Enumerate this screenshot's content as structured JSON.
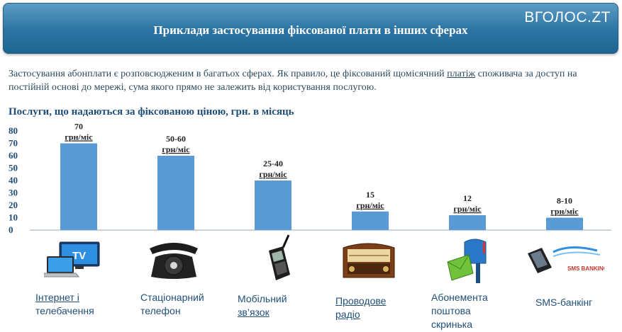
{
  "header": {
    "title": "Приклади застосування фіксованої плати в інших сферах",
    "logo": "ВГОЛОС.ZT"
  },
  "intro": {
    "text_before_link": "Застосування абонплати є  розповсюдженим  в багатьох сферах. Як правило, це фіксований щомісячний ",
    "link": "платіж",
    "text_after_link": " споживача за доступ на постійній основі до мережі, сума якого прямо не залежить  від  користування послугою."
  },
  "chart_title": "Послуги, що надаються за фіксованою ціною, грн. в місяць",
  "colors": {
    "bar": "#5b9bd5",
    "header": "#2b74a2",
    "text": "#1f4e79"
  },
  "chart_data": {
    "type": "bar",
    "ylim": [
      0,
      80
    ],
    "yticks": [
      0,
      10,
      20,
      30,
      40,
      50,
      60,
      70,
      80
    ],
    "categories": [
      "Інтернет і телебачення",
      "Стаціонарний телефон",
      "Мобільний зв’язок",
      "Проводове радіо",
      "Абонемента поштова скринька",
      "SMS-банкінг"
    ],
    "values": [
      70,
      60,
      40,
      15,
      12,
      10
    ],
    "value_labels": [
      "70",
      "50-60",
      "25-40",
      "15",
      "12",
      "8-10"
    ],
    "unit_label": "грн/міс",
    "grid": false,
    "legend": "none"
  },
  "categories": [
    {
      "icon": "tv-laptop-icon",
      "lines": [
        "Інтернет і",
        "телебачення"
      ],
      "underline": [
        true,
        false
      ]
    },
    {
      "icon": "rotary-phone-icon",
      "lines": [
        "Стаціонарний",
        "телефон"
      ],
      "underline": [
        false,
        false
      ]
    },
    {
      "icon": "mobile-phone-icon",
      "lines": [
        "Мобільний",
        "зв’язок"
      ],
      "underline": [
        false,
        true
      ]
    },
    {
      "icon": "radio-icon",
      "lines": [
        "Проводове",
        "радіо"
      ],
      "underline": [
        true,
        true
      ]
    },
    {
      "icon": "mailbox-icon",
      "lines": [
        "Абонемента",
        "поштова",
        "скринька"
      ],
      "underline": [
        false,
        false,
        false
      ]
    },
    {
      "icon": "sms-banking-icon",
      "lines": [
        "SMS-банкінг"
      ],
      "underline": [
        false
      ]
    }
  ],
  "sms_icon_text": "SMS BANKING"
}
